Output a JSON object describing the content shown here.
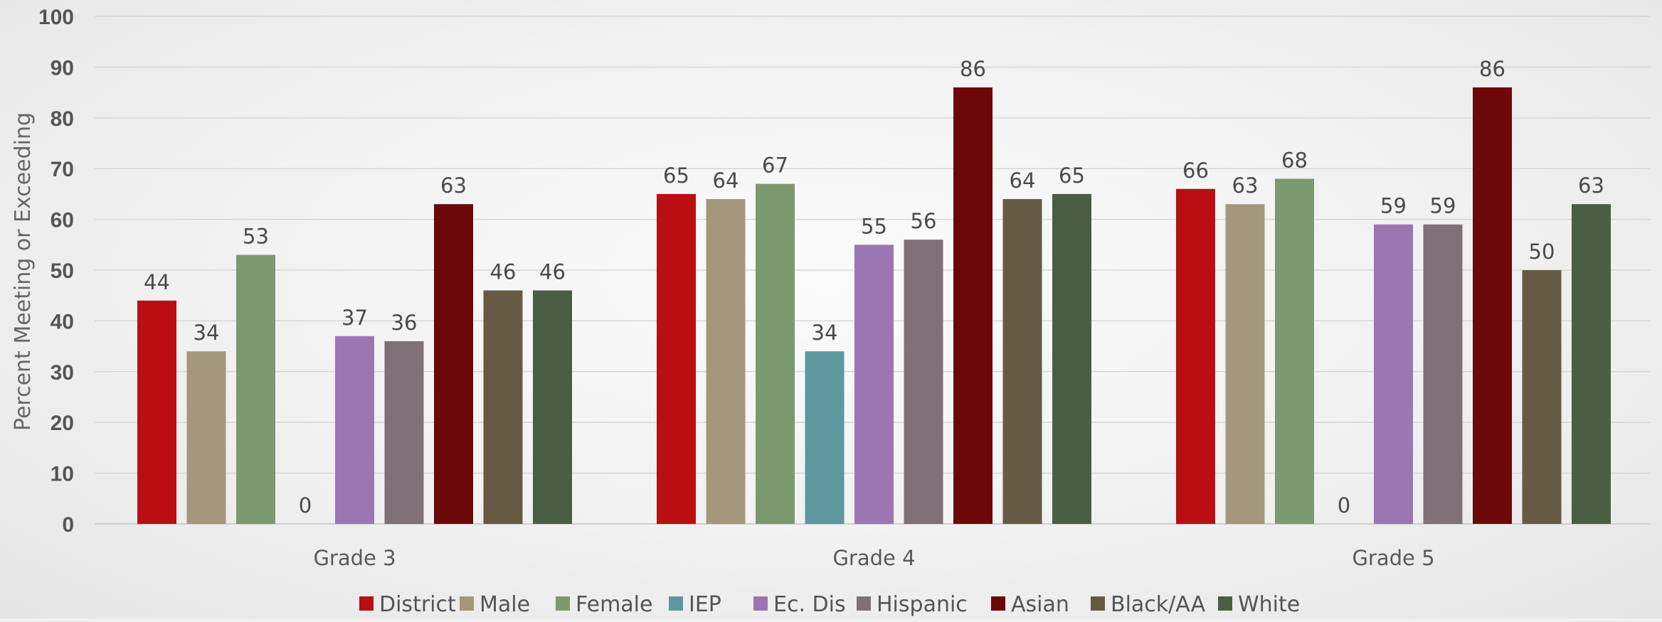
{
  "chart_data": {
    "type": "bar",
    "title": "",
    "xlabel": "",
    "ylabel": "Percent Meeting or Exceeding",
    "ylim": [
      0,
      100
    ],
    "yticks": [
      0,
      10,
      20,
      30,
      40,
      50,
      60,
      70,
      80,
      90,
      100
    ],
    "grid": true,
    "legend_position": "bottom",
    "categories": [
      "Grade 3",
      "Grade 4",
      "Grade 5"
    ],
    "series": [
      {
        "name": "District",
        "color": "#b90e12",
        "values": [
          44,
          65,
          66
        ]
      },
      {
        "name": "Male",
        "color": "#a5977b",
        "values": [
          34,
          64,
          63
        ]
      },
      {
        "name": "Female",
        "color": "#7d9970",
        "values": [
          53,
          67,
          68
        ]
      },
      {
        "name": "IEP",
        "color": "#5f97a0",
        "values": [
          0,
          34,
          0
        ]
      },
      {
        "name": "Ec. Dis",
        "color": "#9b76b2",
        "values": [
          37,
          55,
          59
        ]
      },
      {
        "name": "Hispanic",
        "color": "#7f7177",
        "values": [
          36,
          56,
          59
        ]
      },
      {
        "name": "Asian",
        "color": "#6d0809",
        "values": [
          63,
          86,
          86
        ]
      },
      {
        "name": "Black/AA",
        "color": "#675a45",
        "values": [
          46,
          64,
          50
        ]
      },
      {
        "name": "White",
        "color": "#4a5e43",
        "values": [
          46,
          65,
          63
        ]
      }
    ]
  }
}
